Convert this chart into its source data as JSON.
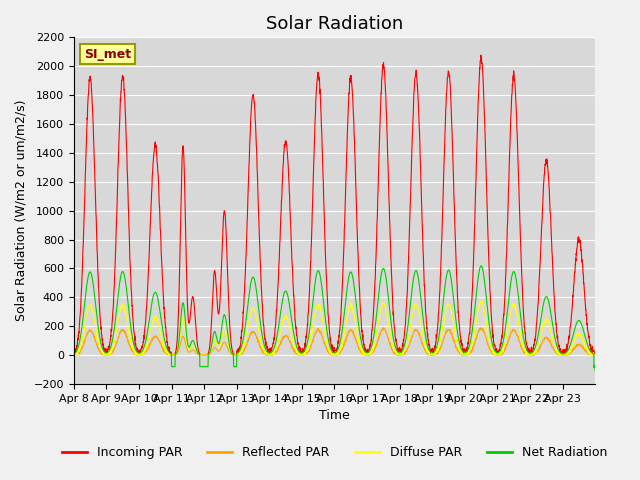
{
  "title": "Solar Radiation",
  "ylabel": "Solar Radiation (W/m2 or um/m2/s)",
  "xlabel": "Time",
  "ylim": [
    -200,
    2200
  ],
  "yticks": [
    -200,
    0,
    200,
    400,
    600,
    800,
    1000,
    1200,
    1400,
    1600,
    1800,
    2000,
    2200
  ],
  "x_tick_labels": [
    "Apr 8",
    "Apr 9",
    "Apr 10",
    "Apr 11",
    "Apr 12",
    "Apr 13",
    "Apr 14",
    "Apr 15",
    "Apr 16",
    "Apr 17",
    "Apr 18",
    "Apr 19",
    "Apr 20",
    "Apr 21",
    "Apr 22",
    "Apr 23"
  ],
  "legend_labels": [
    "Incoming PAR",
    "Reflected PAR",
    "Diffuse PAR",
    "Net Radiation"
  ],
  "legend_colors": [
    "red",
    "orange",
    "yellow",
    "#00cc00"
  ],
  "site_label": "SI_met",
  "background_color": "#f0f0f0",
  "plot_bg_color": "#d8d8d8",
  "title_fontsize": 13,
  "label_fontsize": 9,
  "tick_fontsize": 8
}
